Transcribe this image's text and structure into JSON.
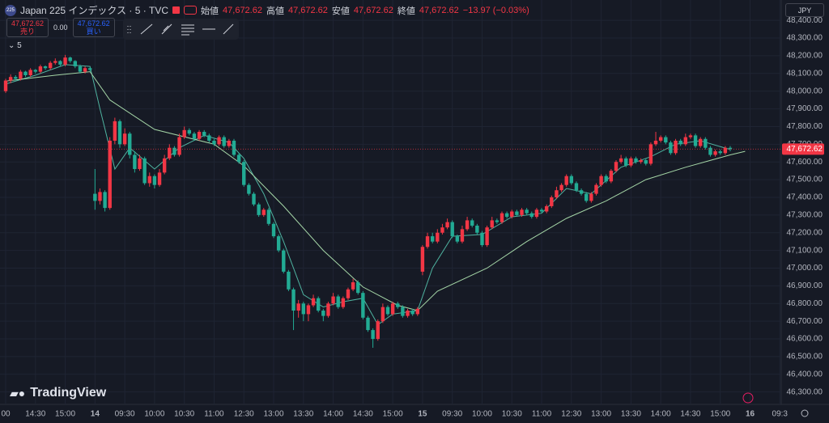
{
  "header": {
    "logo": "225",
    "symbol": "Japan 225 インデックス · 5 · TVC",
    "open_label": "始値",
    "open": "47,672.62",
    "high_label": "高値",
    "high": "47,672.62",
    "low_label": "安値",
    "low": "47,672.62",
    "close_label": "終値",
    "close": "47,672.62",
    "change": "−13.97 (−0.03%)"
  },
  "trade": {
    "sell_price": "47,672.62",
    "sell_label": "売り",
    "spread": "0.00",
    "buy_price": "47,672.62",
    "buy_label": "買い"
  },
  "indicator": "5",
  "currency": "JPY",
  "brand": "TradingView",
  "chart_data": {
    "type": "candlestick",
    "categories": [
      "00",
      null,
      null,
      null,
      null,
      null,
      "14:30",
      null,
      null,
      null,
      null,
      null,
      "15:00",
      null,
      null,
      null,
      null,
      null,
      "14",
      null,
      null,
      null,
      null,
      null,
      "09:30",
      null,
      null,
      null,
      null,
      null,
      "10:00",
      null,
      null,
      null,
      null,
      null,
      "10:30",
      null,
      null,
      null,
      null,
      null,
      "11:00",
      null,
      null,
      null,
      null,
      null,
      "12:30",
      null,
      null,
      null,
      null,
      null,
      "13:00",
      null,
      null,
      null,
      null,
      null,
      "13:30",
      null,
      null,
      null,
      null,
      null,
      "14:00",
      null,
      null,
      null,
      null,
      null,
      "14:30",
      null,
      null,
      null,
      null,
      null,
      "15:00",
      null,
      null,
      null,
      null,
      null,
      "15",
      null,
      null,
      null,
      null,
      null,
      "09:30",
      null,
      null,
      null,
      null,
      null,
      "10:00",
      null,
      null,
      null,
      null,
      null,
      "10:30",
      null,
      null,
      null,
      null,
      null,
      "11:00",
      null,
      null,
      null,
      null,
      null,
      "12:30",
      null,
      null,
      null,
      null,
      null,
      "13:00",
      null,
      null,
      null,
      null,
      null,
      "13:30",
      null,
      null,
      null,
      null,
      null,
      "14:00",
      null,
      null,
      null,
      null,
      null,
      "14:30",
      null,
      null,
      null,
      null,
      null,
      "15:00",
      null,
      null,
      null,
      null,
      null,
      "16",
      null,
      null,
      null,
      null,
      null,
      "09:3"
    ],
    "open": [
      48000,
      48060,
      48080,
      48070,
      48110,
      48090,
      48120,
      48110,
      48140,
      48130,
      48160,
      48170,
      48150,
      48190,
      48170,
      48140,
      48110,
      48130,
      47420,
      47380,
      47430,
      47340,
      47720,
      47830,
      47700,
      47760,
      47640,
      47560,
      47620,
      47480,
      47520,
      47470,
      47540,
      47620,
      47680,
      47640,
      47740,
      47780,
      47760,
      47730,
      47770,
      47750,
      47720,
      47700,
      47740,
      47690,
      47720,
      47640,
      47600,
      47470,
      47420,
      47360,
      47300,
      47330,
      47250,
      47180,
      47100,
      46980,
      46880,
      46760,
      46800,
      46740,
      46790,
      46830,
      46760,
      46730,
      46800,
      46840,
      46780,
      46830,
      46880,
      46920,
      46860,
      46720,
      46650,
      46600,
      46700,
      46780,
      46740,
      46800,
      46780,
      46730,
      46760,
      46740,
      46980,
      47120,
      47180,
      47150,
      47200,
      47230,
      47260,
      47180,
      47150,
      47220,
      47270,
      47240,
      47200,
      47130,
      47230,
      47270,
      47260,
      47310,
      47290,
      47320,
      47300,
      47330,
      47310,
      47290,
      47330,
      47320,
      47350,
      47400,
      47440,
      47470,
      47520,
      47480,
      47440,
      47420,
      47380,
      47420,
      47470,
      47520,
      47490,
      47550,
      47600,
      47620,
      47580,
      47620,
      47600,
      47610,
      47590,
      47700,
      47720,
      47740,
      47710,
      47650,
      47720,
      47700,
      47740,
      47750,
      47690,
      47730,
      47680,
      47640,
      47660,
      47650,
      47680,
      null,
      null,
      null,
      null,
      null,
      null,
      null,
      null,
      null,
      null
    ],
    "high": [
      48070,
      48095,
      48090,
      48120,
      48115,
      48130,
      48125,
      48150,
      48145,
      48170,
      48185,
      48175,
      48205,
      48195,
      48175,
      48150,
      48140,
      48135,
      47560,
      47450,
      47440,
      47740,
      47850,
      47840,
      47790,
      47770,
      47660,
      47640,
      47630,
      47540,
      47530,
      47560,
      47640,
      47700,
      47690,
      47760,
      47800,
      47790,
      47770,
      47780,
      47780,
      47760,
      47730,
      47750,
      47750,
      47730,
      47730,
      47650,
      47610,
      47480,
      47430,
      47370,
      47340,
      47340,
      47260,
      47190,
      47110,
      46990,
      46890,
      46820,
      46810,
      46800,
      46850,
      46840,
      46770,
      46810,
      46860,
      46850,
      46840,
      46890,
      46940,
      46930,
      46870,
      46730,
      46660,
      46710,
      46800,
      46790,
      46810,
      46810,
      46790,
      46770,
      46770,
      46780,
      47130,
      47200,
      47200,
      47220,
      47250,
      47280,
      47270,
      47190,
      47240,
      47290,
      47280,
      47250,
      47210,
      47240,
      47290,
      47280,
      47320,
      47320,
      47330,
      47330,
      47340,
      47340,
      47320,
      47340,
      47340,
      47360,
      47410,
      47460,
      47480,
      47530,
      47530,
      47490,
      47450,
      47430,
      47430,
      47480,
      47530,
      47530,
      47560,
      47610,
      47640,
      47630,
      47630,
      47630,
      47620,
      47620,
      47710,
      47770,
      47750,
      47750,
      47720,
      47730,
      47730,
      47760,
      47760,
      47760,
      47740,
      47740,
      47690,
      47670,
      47670,
      47690,
      47690,
      null,
      null,
      null,
      null,
      null,
      null,
      null,
      null,
      null,
      null
    ],
    "low": [
      47990,
      48045,
      48060,
      48060,
      48080,
      48080,
      48100,
      48100,
      48120,
      48120,
      48150,
      48140,
      48140,
      48160,
      48130,
      48100,
      48100,
      48110,
      47330,
      47360,
      47320,
      47330,
      47700,
      47680,
      47690,
      47620,
      47540,
      47550,
      47470,
      47460,
      47450,
      47460,
      47530,
      47610,
      47630,
      47630,
      47730,
      47750,
      47720,
      47720,
      47740,
      47710,
      47690,
      47690,
      47680,
      47680,
      47630,
      47590,
      47460,
      47410,
      47350,
      47290,
      47290,
      47240,
      47170,
      47090,
      46970,
      46870,
      46650,
      46720,
      46700,
      46700,
      46780,
      46750,
      46700,
      46720,
      46790,
      46770,
      46770,
      46820,
      46870,
      46850,
      46710,
      46640,
      46550,
      46590,
      46690,
      46730,
      46730,
      46770,
      46720,
      46720,
      46730,
      46730,
      46960,
      47110,
      47140,
      47140,
      47190,
      47220,
      47170,
      47140,
      47140,
      47210,
      47230,
      47190,
      47120,
      47120,
      47220,
      47250,
      47250,
      47280,
      47280,
      47290,
      47290,
      47300,
      47280,
      47280,
      47310,
      47310,
      47340,
      47390,
      47430,
      47460,
      47470,
      47430,
      47410,
      47370,
      47370,
      47410,
      47460,
      47480,
      47480,
      47540,
      47590,
      47570,
      47570,
      47590,
      47590,
      47580,
      47580,
      47690,
      47710,
      47700,
      47640,
      47640,
      47690,
      47690,
      47730,
      47680,
      47680,
      47670,
      47630,
      47630,
      47640,
      47640,
      47660,
      null,
      null,
      null,
      null,
      null,
      null,
      null,
      null,
      null,
      null
    ],
    "close": [
      48060,
      48080,
      48070,
      48110,
      48090,
      48120,
      48110,
      48140,
      48130,
      48160,
      48170,
      48150,
      48190,
      48170,
      48140,
      48110,
      48130,
      48120,
      47380,
      47430,
      47340,
      47720,
      47830,
      47700,
      47760,
      47640,
      47560,
      47620,
      47480,
      47520,
      47470,
      47540,
      47620,
      47680,
      47640,
      47740,
      47780,
      47760,
      47730,
      47770,
      47750,
      47720,
      47700,
      47740,
      47690,
      47720,
      47640,
      47600,
      47470,
      47420,
      47360,
      47300,
      47330,
      47250,
      47180,
      47100,
      46980,
      46880,
      46760,
      46800,
      46740,
      46790,
      46830,
      46760,
      46730,
      46800,
      46840,
      46780,
      46830,
      46880,
      46920,
      46860,
      46720,
      46650,
      46600,
      46700,
      46780,
      46740,
      46800,
      46780,
      46730,
      46760,
      46740,
      46770,
      47120,
      47180,
      47150,
      47200,
      47230,
      47260,
      47180,
      47150,
      47220,
      47270,
      47240,
      47200,
      47130,
      47230,
      47270,
      47260,
      47310,
      47290,
      47320,
      47300,
      47330,
      47310,
      47290,
      47330,
      47320,
      47350,
      47400,
      47440,
      47470,
      47520,
      47480,
      47440,
      47420,
      47380,
      47420,
      47470,
      47520,
      47490,
      47550,
      47600,
      47620,
      47580,
      47620,
      47600,
      47610,
      47590,
      47700,
      47720,
      47740,
      47710,
      47650,
      47720,
      47700,
      47740,
      47750,
      47690,
      47730,
      47680,
      47640,
      47660,
      47650,
      47680,
      47672.62,
      null,
      null,
      null,
      null,
      null,
      null,
      null,
      null,
      null,
      null
    ],
    "up_color": "#f23645",
    "down_color": "#22ab94",
    "lines": [
      {
        "color": "#4fb3a0",
        "x": [
          0,
          6,
          12,
          17,
          19,
          22,
          25,
          30,
          35,
          40,
          45,
          48,
          52,
          56,
          60,
          64,
          68,
          72,
          75,
          78,
          83,
          86,
          90,
          96,
          102,
          108,
          113,
          118,
          124,
          130,
          135,
          140,
          146
        ],
        "values": [
          48040,
          48090,
          48150,
          48140,
          47900,
          47560,
          47680,
          47560,
          47680,
          47750,
          47710,
          47620,
          47420,
          47150,
          46850,
          46780,
          46810,
          46830,
          46680,
          46740,
          46760,
          47000,
          47180,
          47190,
          47290,
          47310,
          47450,
          47420,
          47570,
          47630,
          47700,
          47720,
          47670
        ]
      },
      {
        "color": "#a5d6a7",
        "x": [
          0,
          10,
          17,
          21,
          30,
          42,
          48,
          56,
          64,
          72,
          79,
          83,
          87,
          97,
          105,
          113,
          121,
          129,
          137,
          146,
          149
        ],
        "values": [
          48057,
          48090,
          48110,
          47950,
          47784,
          47700,
          47578,
          47350,
          47100,
          46893,
          46790,
          46760,
          46870,
          47000,
          47150,
          47281,
          47380,
          47500,
          47570,
          47640,
          47660
        ]
      }
    ],
    "ylim": [
      46230,
      48515
    ],
    "yticks": [
      {
        "value": 46300,
        "label": "46,300.00"
      },
      {
        "value": 46400,
        "label": "46,400.00"
      },
      {
        "value": 46500,
        "label": "46,500.00"
      },
      {
        "value": 46600,
        "label": "46,600.00"
      },
      {
        "value": 46700,
        "label": "46,700.00"
      },
      {
        "value": 46800,
        "label": "46,800.00"
      },
      {
        "value": 46900,
        "label": "46,900.00"
      },
      {
        "value": 47000,
        "label": "47,000.00"
      },
      {
        "value": 47100,
        "label": "47,100.00"
      },
      {
        "value": 47200,
        "label": "47,200.00"
      },
      {
        "value": 47300,
        "label": "47,300.00"
      },
      {
        "value": 47400,
        "label": "47,400.00"
      },
      {
        "value": 47500,
        "label": "47,500.00"
      },
      {
        "value": 47600,
        "label": "47,600.00"
      },
      {
        "value": 47700,
        "label": "47,700.00"
      },
      {
        "value": 47800,
        "label": "47,800.00"
      },
      {
        "value": 47900,
        "label": "47,900.00"
      },
      {
        "value": 48000,
        "label": "48,000.00"
      },
      {
        "value": 48100,
        "label": "48,100.00"
      },
      {
        "value": 48200,
        "label": "48,200.00"
      },
      {
        "value": 48300,
        "label": "48,300.00"
      },
      {
        "value": 48400,
        "label": "48,400.00"
      }
    ],
    "grid": true,
    "last_price": {
      "value": 47672.62,
      "label": "47,672.62"
    }
  }
}
